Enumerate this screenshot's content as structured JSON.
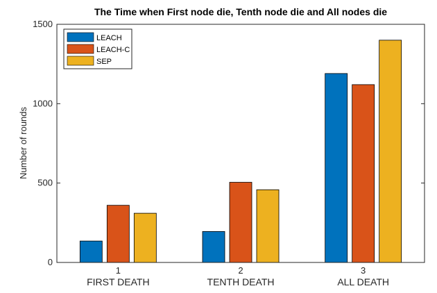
{
  "chart_data": {
    "type": "bar",
    "title": "The Time when First node die, Tenth node die and All nodes die",
    "y_label": "Number of rounds",
    "categories": [
      "1",
      "2",
      "3"
    ],
    "category_labels": [
      "FIRST DEATH",
      "TENTH DEATH",
      "ALL DEATH"
    ],
    "series": [
      {
        "name": "LEACH",
        "color": "#0072BD",
        "values": [
          135,
          195,
          1190
        ]
      },
      {
        "name": "LEACH-C",
        "color": "#D95319",
        "values": [
          360,
          505,
          1120
        ]
      },
      {
        "name": "SEP",
        "color": "#EDB120",
        "values": [
          310,
          458,
          1400
        ]
      }
    ],
    "ylim": [
      0,
      1500
    ],
    "yticks": [
      0,
      500,
      1000,
      1500
    ],
    "legend": "upper left"
  }
}
